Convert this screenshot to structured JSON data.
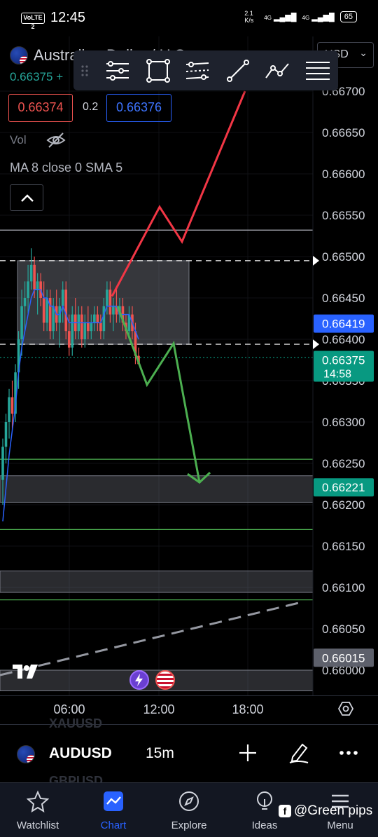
{
  "status_bar": {
    "time": "12:45",
    "volte": "VoLTE 2",
    "net_speed": "2.1 K/s",
    "sig1": "4G",
    "sig2": "4G",
    "battery": "65"
  },
  "header": {
    "symbol_title": "Australian Dollar / U.S.",
    "last_price": "0.66375",
    "change_prefix": "+",
    "bid": "0.66374",
    "spread": "0.2",
    "ask": "0.66376",
    "vol_label": "Vol",
    "ma_label": "MA 8 close 0 SMA 5",
    "currency": "USD"
  },
  "drawing_toolbar": {
    "icons": [
      "drag-handle-icon",
      "horizontal-levels-icon",
      "rectangle-icon",
      "parallel-channel-icon",
      "trend-line-icon",
      "path-icon",
      "fib-levels-icon"
    ]
  },
  "colors": {
    "up": "#26a69a",
    "down": "#ef5350",
    "ma": "#2962ff",
    "red_arrow": "#f23645",
    "green_arrow": "#4caf50",
    "bg": "#000000"
  },
  "chart_data": {
    "type": "candlestick",
    "symbol": "AUDUSD",
    "interval": "15m",
    "price_range": [
      0.6597,
      0.6676
    ],
    "price_ticks": [
      "0.66700",
      "0.66650",
      "0.66600",
      "0.66550",
      "0.66500",
      "0.66450",
      "0.66400",
      "0.66350",
      "0.66300",
      "0.66250",
      "0.66200",
      "0.66150",
      "0.66100",
      "0.66050",
      "0.66000"
    ],
    "time_ticks": [
      "06:00",
      "12:00",
      "18:00"
    ],
    "price_labels": [
      {
        "price": 0.66419,
        "text": "0.66419",
        "color": "#2962ff"
      },
      {
        "price": 0.66375,
        "text": "0.66375",
        "sub": "14:58",
        "color": "#089981"
      },
      {
        "price": 0.66221,
        "text": "0.66221",
        "color": "#089981"
      },
      {
        "price": 0.66015,
        "text": "0.66015",
        "color": "#5d606b"
      }
    ],
    "candles": [
      [
        0.6623,
        0.6628,
        0.662,
        0.6627
      ],
      [
        0.6627,
        0.6631,
        0.6625,
        0.663
      ],
      [
        0.663,
        0.6634,
        0.6628,
        0.6633
      ],
      [
        0.6633,
        0.6635,
        0.6629,
        0.6631
      ],
      [
        0.6631,
        0.6637,
        0.663,
        0.6636
      ],
      [
        0.6636,
        0.6641,
        0.6634,
        0.664
      ],
      [
        0.664,
        0.6646,
        0.6638,
        0.6644
      ],
      [
        0.6644,
        0.6647,
        0.6641,
        0.6645
      ],
      [
        0.6645,
        0.6649,
        0.6643,
        0.6647
      ],
      [
        0.6647,
        0.6651,
        0.6646,
        0.6649
      ],
      [
        0.6649,
        0.665,
        0.6645,
        0.6646
      ],
      [
        0.6646,
        0.6648,
        0.6643,
        0.6647
      ],
      [
        0.6647,
        0.6648,
        0.6644,
        0.6645
      ],
      [
        0.6645,
        0.6647,
        0.6641,
        0.6642
      ],
      [
        0.6642,
        0.6646,
        0.6641,
        0.6645
      ],
      [
        0.6645,
        0.6646,
        0.664,
        0.6641
      ],
      [
        0.6641,
        0.6645,
        0.664,
        0.6644
      ],
      [
        0.6644,
        0.6646,
        0.6641,
        0.6642
      ],
      [
        0.6642,
        0.6645,
        0.6639,
        0.6644
      ],
      [
        0.6644,
        0.6647,
        0.6642,
        0.6646
      ],
      [
        0.6646,
        0.6647,
        0.664,
        0.6641
      ],
      [
        0.6641,
        0.6643,
        0.6638,
        0.6639
      ],
      [
        0.6639,
        0.6644,
        0.6638,
        0.6643
      ],
      [
        0.6643,
        0.6645,
        0.664,
        0.6641
      ],
      [
        0.6641,
        0.6644,
        0.664,
        0.6643
      ],
      [
        0.6643,
        0.6644,
        0.6639,
        0.664
      ],
      [
        0.664,
        0.6643,
        0.6639,
        0.6642
      ],
      [
        0.6642,
        0.6644,
        0.664,
        0.6641
      ],
      [
        0.6641,
        0.6643,
        0.664,
        0.6642
      ],
      [
        0.6642,
        0.6644,
        0.6641,
        0.6643
      ],
      [
        0.6643,
        0.6644,
        0.6641,
        0.6642
      ],
      [
        0.6642,
        0.6643,
        0.664,
        0.6641
      ],
      [
        0.6641,
        0.6645,
        0.664,
        0.6644
      ],
      [
        0.6644,
        0.6647,
        0.6643,
        0.6646
      ],
      [
        0.6646,
        0.6647,
        0.6642,
        0.6643
      ],
      [
        0.6643,
        0.6645,
        0.6641,
        0.6644
      ],
      [
        0.6644,
        0.6646,
        0.6642,
        0.6643
      ],
      [
        0.6643,
        0.6645,
        0.6642,
        0.6644
      ],
      [
        0.6644,
        0.6645,
        0.6641,
        0.6642
      ],
      [
        0.6642,
        0.6643,
        0.664,
        0.6641
      ],
      [
        0.6641,
        0.6644,
        0.664,
        0.6643
      ],
      [
        0.6643,
        0.6644,
        0.664,
        0.6641
      ],
      [
        0.6641,
        0.6642,
        0.6637,
        0.6638
      ],
      [
        0.6638,
        0.6639,
        0.6637,
        0.6637
      ]
    ],
    "ma_values": [
      0.6618,
      0.6622,
      0.6626,
      0.6629,
      0.6632,
      0.6636,
      0.6639,
      0.6641,
      0.6643,
      0.6645,
      0.6646,
      0.6646,
      0.6646,
      0.6645,
      0.6645,
      0.6644,
      0.6644,
      0.6643,
      0.6643,
      0.6644,
      0.6643,
      0.6642,
      0.6642,
      0.6642,
      0.6642,
      0.6642,
      0.6642,
      0.6642,
      0.6642,
      0.6642,
      0.6642,
      0.6642,
      0.6643,
      0.6644,
      0.6644,
      0.6644,
      0.6644,
      0.6643,
      0.6643,
      0.6643,
      0.6643,
      0.6642,
      0.6641,
      0.664
    ],
    "horizontal_lines": [
      {
        "price": 0.66532,
        "style": "solid",
        "color": "#b2b5be"
      },
      {
        "price": 0.66495,
        "style": "dashed",
        "color": "#ffffff"
      },
      {
        "price": 0.66394,
        "style": "dashed",
        "color": "#ffffff"
      },
      {
        "price": 0.66378,
        "style": "dotted",
        "color": "#089981"
      },
      {
        "price": 0.66255,
        "style": "solid",
        "color": "#4caf50"
      },
      {
        "price": 0.6617,
        "style": "solid",
        "color": "#4caf50"
      },
      {
        "price": 0.66085,
        "style": "solid",
        "color": "#4caf50"
      }
    ],
    "zones": [
      {
        "name": "range-box",
        "price_top": 0.66495,
        "price_bottom": 0.66394
      },
      {
        "name": "support-zone-1",
        "price_top": 0.66235,
        "price_bottom": 0.66203
      },
      {
        "name": "support-zone-2",
        "price_top": 0.6612,
        "price_bottom": 0.66094
      },
      {
        "name": "support-zone-3",
        "price_top": 0.66,
        "price_bottom": 0.65975
      }
    ],
    "bullish_path": [
      [
        0.66452,
        0
      ],
      [
        0.6656,
        1
      ],
      [
        0.66518,
        2
      ],
      [
        0.667,
        3
      ]
    ],
    "bearish_path": [
      [
        0.6644,
        0
      ],
      [
        0.66345,
        1
      ],
      [
        0.66395,
        2
      ],
      [
        0.66227,
        3
      ]
    ],
    "trend_line": [
      [
        0.65994,
        0
      ],
      [
        0.66082,
        1
      ]
    ]
  },
  "time_axis": {
    "t1": "06:00",
    "t2": "12:00",
    "t3": "18:00"
  },
  "symbol_bar": {
    "symbol": "AUDUSD",
    "interval": "15m",
    "ghost_above": "XAUUSD",
    "ghost_below": "GBPUSD"
  },
  "nav": {
    "items": [
      {
        "label": "Watchlist"
      },
      {
        "label": "Chart"
      },
      {
        "label": "Explore"
      },
      {
        "label": "Ideas"
      },
      {
        "label": "Menu"
      }
    ]
  },
  "watermark": {
    "text": "@Green pips"
  }
}
